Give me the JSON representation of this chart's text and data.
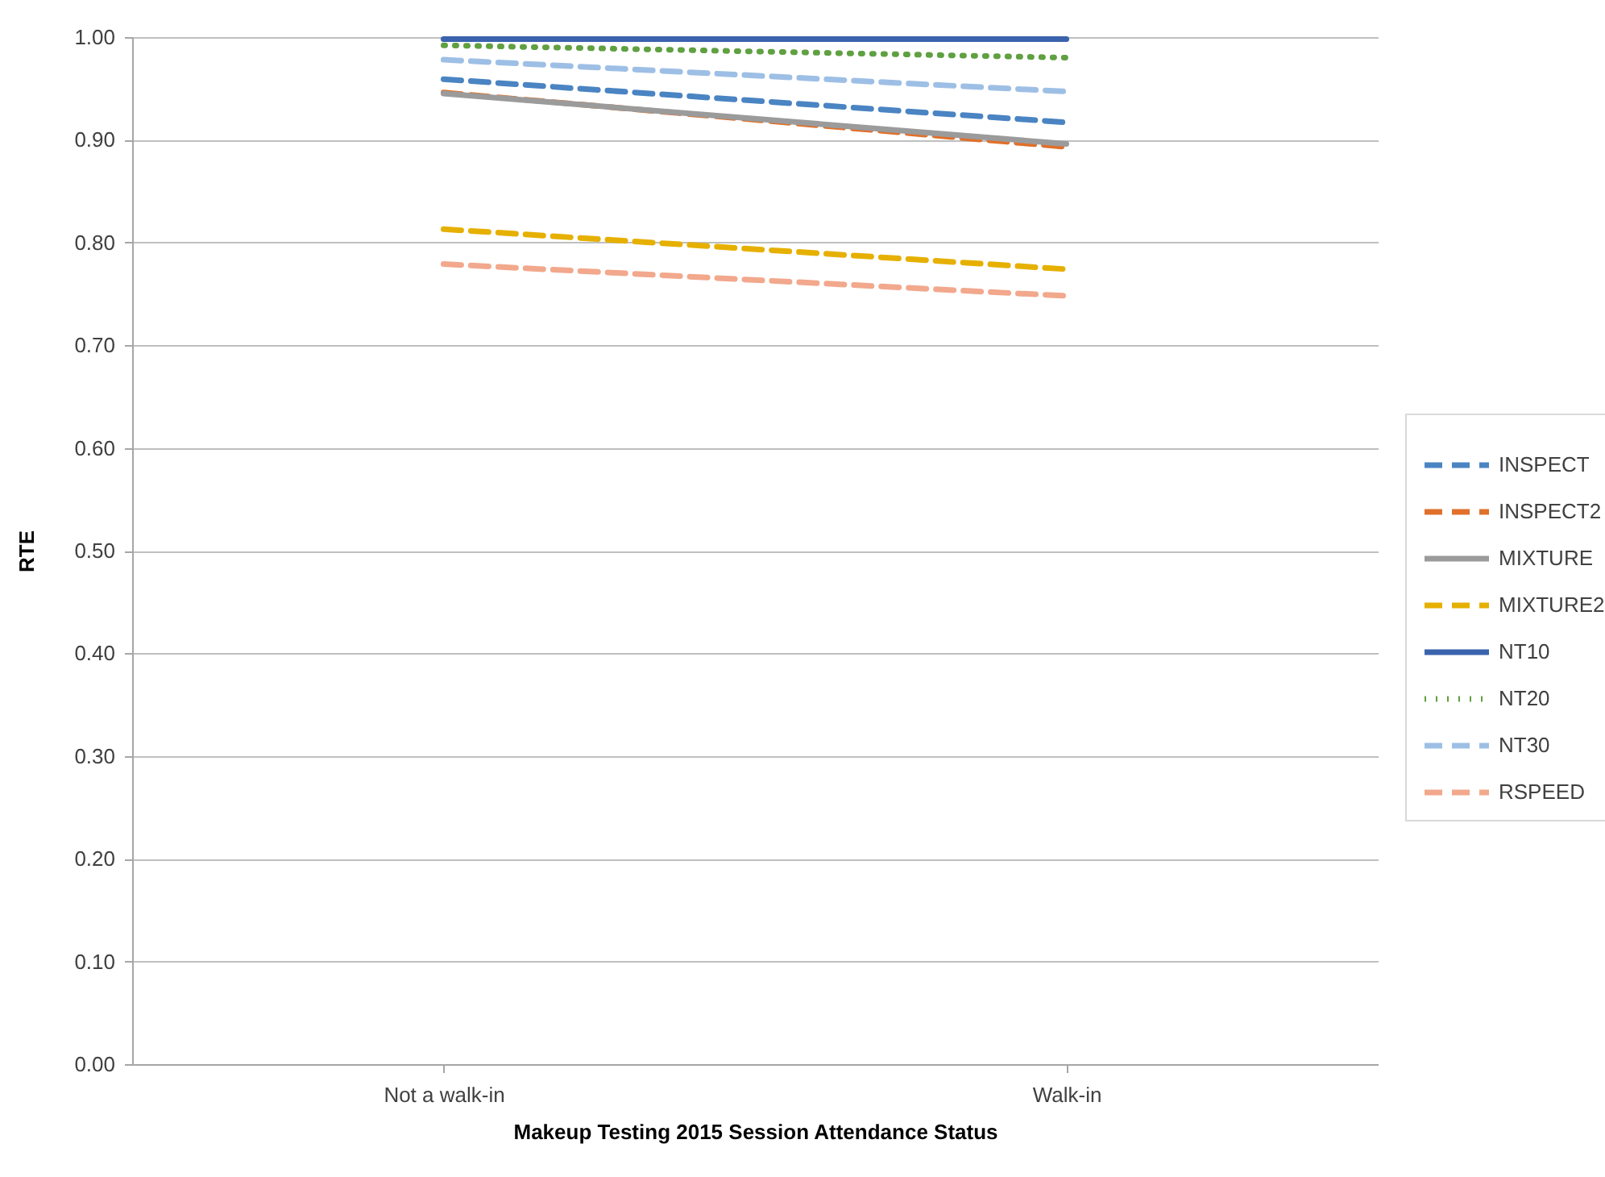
{
  "chart_data": {
    "type": "line",
    "xlabel": "Makeup Testing 2015 Session Attendance Status",
    "ylabel": "RTE",
    "categories": [
      "Not a walk-in",
      "Walk-in"
    ],
    "ylim": [
      0,
      1
    ],
    "yticks": [
      {
        "value": 0,
        "label": "0.00"
      },
      {
        "value": 0.1,
        "label": "0.10"
      },
      {
        "value": 0.2,
        "label": "0.20"
      },
      {
        "value": 0.3,
        "label": "0.30"
      },
      {
        "value": 0.4,
        "label": "0.40"
      },
      {
        "value": 0.5,
        "label": "0.50"
      },
      {
        "value": 0.6,
        "label": "0.60"
      },
      {
        "value": 0.7,
        "label": "0.70"
      },
      {
        "value": 0.8,
        "label": "0.80"
      },
      {
        "value": 0.9,
        "label": "0.90"
      },
      {
        "value": 1,
        "label": "1.00"
      }
    ],
    "grid": "y",
    "legend": "right",
    "marker": "none",
    "series": [
      {
        "name": "INSPECT",
        "color": "#4a84c2",
        "line_style": "dashed",
        "values": [
          0.959,
          0.917
        ]
      },
      {
        "name": "INSPECT2",
        "color": "#e0702a",
        "line_style": "dashed",
        "values": [
          0.946,
          0.893
        ]
      },
      {
        "name": "MIXTURE",
        "color": "#9b9b9b",
        "line_style": "solid",
        "values": [
          0.945,
          0.896
        ]
      },
      {
        "name": "MIXTURE2",
        "color": "#e6b000",
        "line_style": "dashed",
        "values": [
          0.813,
          0.774
        ]
      },
      {
        "name": "NT10",
        "color": "#3a62ad",
        "line_style": "solid",
        "values": [
          0.998,
          0.998
        ]
      },
      {
        "name": "NT20",
        "color": "#5fa040",
        "line_style": "dotted",
        "values": [
          0.992,
          0.98
        ]
      },
      {
        "name": "NT30",
        "color": "#9ebfe5",
        "line_style": "dashed",
        "values": [
          0.978,
          0.947
        ]
      },
      {
        "name": "RSPEED",
        "color": "#f2a88c",
        "line_style": "dashed",
        "values": [
          0.779,
          0.748
        ]
      }
    ]
  }
}
